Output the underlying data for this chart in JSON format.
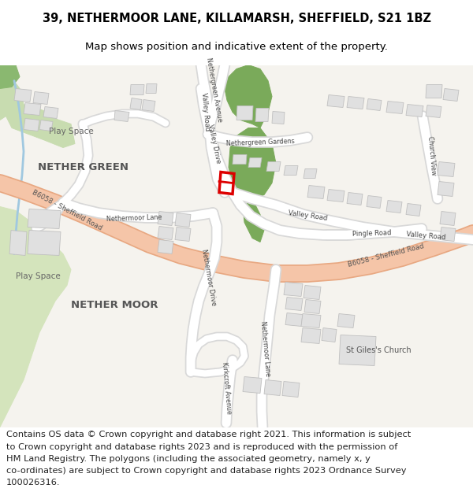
{
  "title_line1": "39, NETHERMOOR LANE, KILLAMARSH, SHEFFIELD, S21 1BZ",
  "title_line2": "Map shows position and indicative extent of the property.",
  "footer_lines": [
    "Contains OS data © Crown copyright and database right 2021. This information is subject",
    "to Crown copyright and database rights 2023 and is reproduced with the permission of",
    "HM Land Registry. The polygons (including the associated geometry, namely x, y",
    "co-ordinates) are subject to Crown copyright and database rights 2023 Ordnance Survey",
    "100026316."
  ],
  "bg_color": "#ffffff",
  "map_bg": "#f5f3ee",
  "road_white": "#ffffff",
  "road_gray": "#d8d8d8",
  "road_b6058_fill": "#f5c5a8",
  "road_b6058_outline": "#e8a882",
  "building_fill": "#e0e0e0",
  "building_outline": "#c0c0c0",
  "green_dark": "#7aaa5a",
  "green_light": "#c8dcb0",
  "green_light2": "#d4e4bc",
  "blue_stream": "#a0c8e0",
  "highlight_red": "#dd0000",
  "title_fontsize": 10.5,
  "subtitle_fontsize": 9.5,
  "footer_fontsize": 8.2,
  "label_color": "#444444",
  "area_label_color": "#555555"
}
